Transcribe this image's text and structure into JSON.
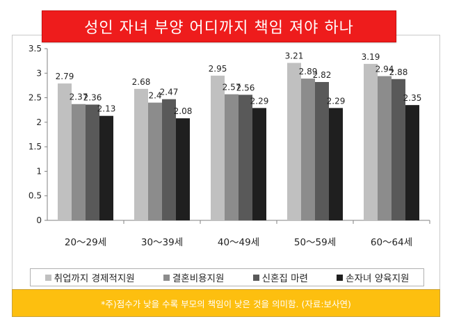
{
  "chart_data": {
    "type": "bar",
    "title": "성인 자녀 부양 어디까지 책임 져야 하나",
    "categories": [
      "20～29세",
      "30～39세",
      "40～49세",
      "50～59세",
      "60～64세"
    ],
    "series": [
      {
        "name": "취업까지 경제적지원",
        "color": "#c0c0c0",
        "values": [
          2.79,
          2.68,
          2.95,
          3.21,
          3.19
        ]
      },
      {
        "name": "결혼비용지원",
        "color": "#8c8c8c",
        "values": [
          2.37,
          2.4,
          2.57,
          2.89,
          2.94
        ]
      },
      {
        "name": "신혼집 마련",
        "color": "#595959",
        "values": [
          2.36,
          2.47,
          2.56,
          2.82,
          2.88
        ]
      },
      {
        "name": "손자녀 양육지원",
        "color": "#1f1f1f",
        "values": [
          2.13,
          2.08,
          2.29,
          2.29,
          2.35
        ]
      }
    ],
    "ylim": [
      0,
      3.5
    ],
    "yticks": [
      "0",
      "0.5",
      "1",
      "1.5",
      "2",
      "2.5",
      "3",
      "3.5"
    ],
    "grid": false,
    "legend_position": "bottom",
    "data_labels": [
      [
        "2.79",
        "2.37",
        "2.36",
        "2.13"
      ],
      [
        "2.68",
        "2.4",
        "2.47",
        "2.08"
      ],
      [
        "2.95",
        "2.57",
        "2.56",
        "2.29"
      ],
      [
        "3.21",
        "2.89",
        "2.82",
        "2.29"
      ],
      [
        "3.19",
        "2.94",
        "2.88",
        "2.35"
      ]
    ]
  },
  "note": "*주)점수가 낮을 수록 부모의 책임이 낮은 것을 의미함. (자료:보사연)",
  "colors": {
    "title_bg": "#ee1c1c",
    "note_bg": "#fdbf0f"
  }
}
